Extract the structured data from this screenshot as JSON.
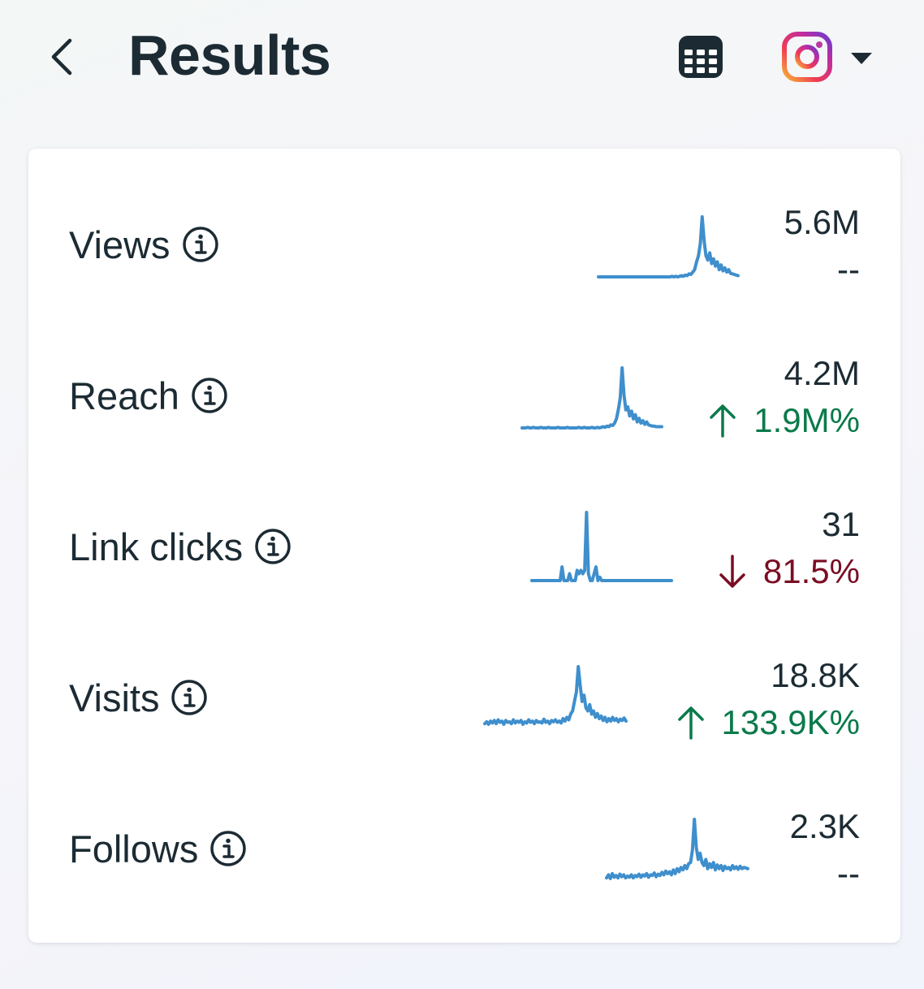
{
  "header": {
    "title": "Results",
    "back_icon": "chevron-left-icon",
    "calendar_icon": "calendar-icon",
    "account_icon": "instagram-icon",
    "dropdown_icon": "caret-down-icon"
  },
  "colors": {
    "sparkline": "#3f8fcd",
    "positive": "#0a7a4a",
    "negative": "#7a0d23",
    "text": "#1c2b33"
  },
  "metrics": [
    {
      "label": "Views",
      "value": "5.6M",
      "change": "--",
      "direction": "none"
    },
    {
      "label": "Reach",
      "value": "4.2M",
      "change": "1.9M%",
      "direction": "up"
    },
    {
      "label": "Link clicks",
      "value": "31",
      "change": "81.5%",
      "direction": "down"
    },
    {
      "label": "Visits",
      "value": "18.8K",
      "change": "133.9K%",
      "direction": "up"
    },
    {
      "label": "Follows",
      "value": "2.3K",
      "change": "--",
      "direction": "none"
    }
  ],
  "chart_data": [
    {
      "type": "line",
      "name": "views-trend",
      "values": [
        0,
        0,
        0,
        0,
        0,
        0,
        0,
        0,
        0,
        0,
        0,
        0,
        0,
        0,
        0,
        0,
        0,
        0,
        0,
        0,
        0,
        0,
        0,
        0,
        0,
        0,
        0,
        0,
        0,
        0,
        0,
        0,
        0,
        0,
        0,
        0,
        0,
        0,
        0,
        0.01,
        0,
        0.01,
        0,
        0.01,
        0.02,
        0.01,
        0.03,
        0.02,
        0.05,
        0.04,
        0.08,
        0.12,
        0.25,
        0.35,
        0.55,
        1.0,
        0.6,
        0.35,
        0.28,
        0.4,
        0.22,
        0.3,
        0.18,
        0.25,
        0.12,
        0.2,
        0.1,
        0.15,
        0.08,
        0.12,
        0.06,
        0.05,
        0.04,
        0.03,
        0.02
      ]
    },
    {
      "type": "line",
      "name": "reach-trend",
      "values": [
        0,
        0,
        0,
        0.01,
        0,
        0,
        0.01,
        0,
        0,
        0,
        0.01,
        0,
        0,
        0,
        0.01,
        0,
        0,
        0,
        0,
        0.01,
        0,
        0,
        0,
        0,
        0.01,
        0,
        0,
        0,
        0,
        0,
        0.01,
        0,
        0,
        0.01,
        0,
        0,
        0,
        0.01,
        0,
        0,
        0.01,
        0,
        0.01,
        0.02,
        0.01,
        0.03,
        0.02,
        0.05,
        0.04,
        0.08,
        0.15,
        0.3,
        0.5,
        1.0,
        0.55,
        0.3,
        0.35,
        0.2,
        0.28,
        0.15,
        0.22,
        0.1,
        0.16,
        0.08,
        0.12,
        0.06,
        0.1,
        0.05,
        0.04,
        0.03,
        0.03,
        0.02,
        0.02,
        0.02,
        0.02
      ]
    },
    {
      "type": "line",
      "name": "link-clicks-trend",
      "values": [
        0,
        0,
        0,
        0,
        0,
        0,
        0,
        0,
        0,
        0,
        0,
        0,
        0,
        0,
        0,
        0,
        0.2,
        0,
        0,
        0,
        0.1,
        0,
        0,
        0,
        0.15,
        0.1,
        0.15,
        0.1,
        0.15,
        1.0,
        0.1,
        0,
        0,
        0.1,
        0.2,
        0,
        0.05,
        0,
        0,
        0,
        0,
        0,
        0,
        0,
        0,
        0,
        0,
        0,
        0,
        0,
        0,
        0,
        0,
        0,
        0,
        0,
        0,
        0,
        0,
        0,
        0,
        0,
        0,
        0,
        0,
        0,
        0,
        0,
        0,
        0,
        0,
        0,
        0,
        0,
        0
      ]
    },
    {
      "type": "line",
      "name": "visits-trend",
      "values": [
        0.1,
        0.13,
        0.09,
        0.14,
        0.11,
        0.15,
        0.1,
        0.16,
        0.12,
        0.14,
        0.09,
        0.15,
        0.12,
        0.13,
        0.1,
        0.16,
        0.11,
        0.14,
        0.12,
        0.15,
        0.09,
        0.13,
        0.11,
        0.16,
        0.12,
        0.14,
        0.1,
        0.15,
        0.12,
        0.13,
        0.11,
        0.17,
        0.12,
        0.14,
        0.1,
        0.15,
        0.13,
        0.16,
        0.12,
        0.14,
        0.11,
        0.18,
        0.14,
        0.2,
        0.16,
        0.25,
        0.3,
        0.45,
        0.6,
        1.0,
        0.7,
        0.45,
        0.55,
        0.35,
        0.3,
        0.4,
        0.25,
        0.3,
        0.2,
        0.26,
        0.18,
        0.22,
        0.15,
        0.2,
        0.13,
        0.18,
        0.14,
        0.2,
        0.15,
        0.18,
        0.13,
        0.17,
        0.15,
        0.19,
        0.14
      ]
    },
    {
      "type": "line",
      "name": "follows-trend",
      "values": [
        0.05,
        0.1,
        0.04,
        0.12,
        0.06,
        0.09,
        0.05,
        0.11,
        0.07,
        0.1,
        0.05,
        0.08,
        0.06,
        0.1,
        0.05,
        0.09,
        0.07,
        0.11,
        0.06,
        0.1,
        0.08,
        0.12,
        0.06,
        0.1,
        0.09,
        0.13,
        0.07,
        0.11,
        0.09,
        0.14,
        0.1,
        0.16,
        0.12,
        0.15,
        0.1,
        0.18,
        0.12,
        0.2,
        0.15,
        0.22,
        0.18,
        0.25,
        0.2,
        0.28,
        0.3,
        0.5,
        1.0,
        0.55,
        0.35,
        0.45,
        0.3,
        0.25,
        0.35,
        0.2,
        0.28,
        0.22,
        0.3,
        0.18,
        0.26,
        0.2,
        0.25,
        0.17,
        0.24,
        0.2,
        0.22,
        0.18,
        0.25,
        0.2,
        0.23,
        0.19,
        0.24,
        0.2,
        0.22,
        0.21,
        0.2
      ]
    }
  ]
}
